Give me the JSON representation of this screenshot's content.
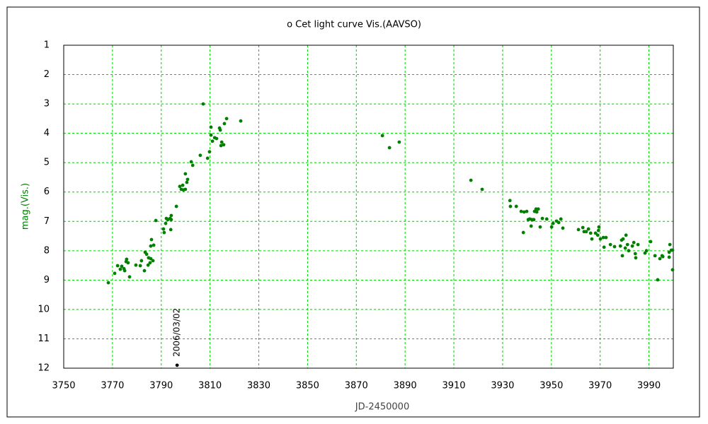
{
  "chart_data": {
    "type": "scatter",
    "title": "ο Cet   light curve Vis.(AAVSO)",
    "xlabel": "JD-2450000",
    "ylabel": "mag.(Vis.)",
    "color": "#007f00",
    "xlim": [
      3750,
      4000
    ],
    "xticks": [
      3750,
      3770,
      3790,
      3810,
      3830,
      3850,
      3870,
      3890,
      3910,
      3930,
      3950,
      3970,
      3990
    ],
    "ylim": [
      12,
      1
    ],
    "yticks": [
      1,
      2,
      3,
      4,
      5,
      6,
      7,
      8,
      9,
      10,
      11,
      12
    ],
    "grid": true,
    "x": [
      3768.3,
      3770.9,
      3772.1,
      3773.2,
      3773.8,
      3774.7,
      3775.0,
      3775.6,
      3775.8,
      3776.4,
      3777.0,
      3779.6,
      3781.4,
      3781.9,
      3783.1,
      3783.4,
      3784.0,
      3784.6,
      3784.8,
      3785.4,
      3785.7,
      3785.7,
      3786.0,
      3786.6,
      3786.9,
      3787.8,
      3790.9,
      3791.2,
      3791.8,
      3792.1,
      3792.7,
      3793.6,
      3793.9,
      3794.1,
      3794.1,
      3796.2,
      3797.6,
      3798.2,
      3798.8,
      3799.1,
      3799.9,
      3799.9,
      3800.5,
      3800.8,
      3802.3,
      3802.9,
      3806.0,
      3807.2,
      3809.0,
      3809.8,
      3810.4,
      3810.4,
      3811.0,
      3811.9,
      3812.7,
      3813.9,
      3814.2,
      3814.5,
      3814.8,
      3815.6,
      3815.9,
      3816.8,
      3822.6,
      3880.7,
      3883.6,
      3887.6,
      3917.0,
      3921.6,
      3933.0,
      3933.2,
      3935.6,
      3937.6,
      3938.8,
      3939.9,
      3938.5,
      3940.5,
      3941.1,
      3941.7,
      3942.0,
      3942.8,
      3943.1,
      3943.7,
      3944.0,
      3944.6,
      3945.4,
      3946.3,
      3948.1,
      3950.1,
      3950.7,
      3952.1,
      3953.0,
      3953.9,
      3954.7,
      3961.1,
      3962.9,
      3963.4,
      3964.3,
      3965.2,
      3966.1,
      3966.6,
      3968.1,
      3969.0,
      3969.5,
      3969.3,
      3970.1,
      3971.3,
      3971.6,
      3972.4,
      3974.2,
      3975.9,
      3978.3,
      3978.8,
      3979.4,
      3979.1,
      3980.3,
      3980.6,
      3981.2,
      3981.7,
      3983.2,
      3983.8,
      3984.4,
      3984.6,
      3985.5,
      3988.4,
      3989.0,
      3990.7,
      3992.5,
      3993.6,
      3994.5,
      3995.4,
      3995.7,
      3998.3,
      3998.3,
      3998.6,
      3999.2,
      3999.7,
      3999.7
    ],
    "y": [
      9.09,
      8.77,
      8.51,
      8.63,
      8.53,
      8.61,
      8.68,
      8.37,
      8.29,
      8.41,
      8.89,
      8.49,
      8.51,
      8.34,
      8.68,
      8.05,
      8.12,
      8.49,
      8.24,
      8.41,
      8.27,
      7.84,
      7.62,
      8.34,
      7.81,
      6.97,
      7.26,
      7.38,
      7.07,
      6.9,
      6.94,
      6.9,
      7.28,
      6.94,
      6.8,
      6.49,
      5.81,
      5.91,
      5.77,
      5.93,
      5.38,
      5.91,
      5.67,
      5.57,
      4.97,
      5.09,
      4.75,
      3.0,
      4.85,
      4.63,
      3.79,
      4.06,
      4.27,
      4.15,
      4.18,
      3.82,
      3.89,
      4.42,
      4.3,
      4.39,
      3.67,
      3.5,
      3.58,
      4.08,
      4.49,
      4.3,
      5.6,
      5.91,
      6.29,
      6.49,
      6.49,
      6.66,
      6.68,
      6.66,
      7.38,
      6.94,
      6.92,
      7.16,
      6.94,
      6.94,
      6.66,
      6.58,
      6.68,
      6.58,
      7.19,
      6.9,
      6.92,
      7.19,
      7.07,
      6.99,
      7.04,
      6.92,
      7.23,
      7.28,
      7.21,
      7.35,
      7.35,
      7.26,
      7.4,
      7.6,
      7.4,
      7.47,
      7.19,
      7.31,
      7.6,
      7.55,
      7.88,
      7.55,
      7.79,
      7.86,
      7.84,
      7.64,
      7.6,
      8.17,
      7.91,
      7.47,
      7.79,
      8.0,
      7.84,
      7.72,
      8.1,
      8.24,
      7.79,
      8.08,
      8.0,
      7.69,
      8.17,
      8.99,
      8.27,
      8.17,
      8.2,
      8.05,
      8.22,
      7.79,
      7.98,
      7.98,
      8.65
    ],
    "annotations": [
      {
        "text": "2006/03/02",
        "x": 3796.5,
        "y": 11.9
      }
    ]
  }
}
